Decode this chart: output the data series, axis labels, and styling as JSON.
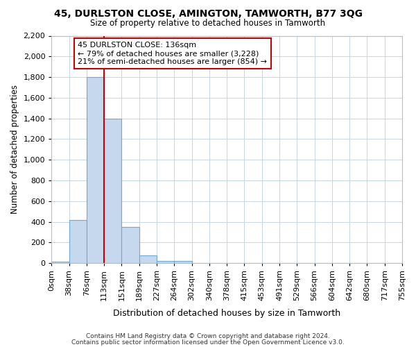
{
  "title": "45, DURLSTON CLOSE, AMINGTON, TAMWORTH, B77 3QG",
  "subtitle": "Size of property relative to detached houses in Tamworth",
  "xlabel": "Distribution of detached houses by size in Tamworth",
  "ylabel": "Number of detached properties",
  "bin_labels": [
    "0sqm",
    "38sqm",
    "76sqm",
    "113sqm",
    "151sqm",
    "189sqm",
    "227sqm",
    "264sqm",
    "302sqm",
    "340sqm",
    "378sqm",
    "415sqm",
    "453sqm",
    "491sqm",
    "529sqm",
    "566sqm",
    "604sqm",
    "642sqm",
    "680sqm",
    "717sqm",
    "755sqm"
  ],
  "bar_heights": [
    15,
    420,
    1800,
    1400,
    350,
    75,
    25,
    20,
    0,
    0,
    0,
    0,
    0,
    0,
    0,
    0,
    0,
    0,
    0,
    0
  ],
  "bar_color": "#c5d8ee",
  "bar_edge_color": "#6aaad4",
  "property_line_x": 3,
  "annotation_text": "45 DURLSTON CLOSE: 136sqm\n← 79% of detached houses are smaller (3,228)\n21% of semi-detached houses are larger (854) →",
  "annotation_box_color": "#ffffff",
  "annotation_box_edge_color": "#cc0000",
  "vline_color": "#cc0000",
  "ylim": [
    0,
    2200
  ],
  "yticks": [
    0,
    200,
    400,
    600,
    800,
    1000,
    1200,
    1400,
    1600,
    1800,
    2000,
    2200
  ],
  "grid_color": "#c5d5e5",
  "footer_line1": "Contains HM Land Registry data © Crown copyright and database right 2024.",
  "footer_line2": "Contains public sector information licensed under the Open Government Licence v3.0.",
  "bin_width": 1,
  "n_bins": 20
}
